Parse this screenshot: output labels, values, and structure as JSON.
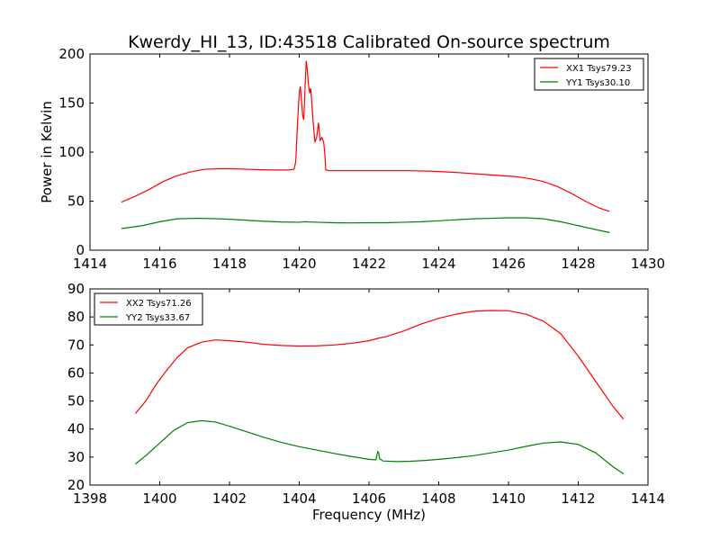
{
  "figure": {
    "title": "Kwerdy_HI_13, ID:43518 Calibrated On-source spectrum",
    "ylabel": "Power in Kelvin",
    "xlabel": "Frequency (MHz)"
  },
  "chart_data": [
    {
      "type": "line",
      "xlim": [
        1414,
        1430
      ],
      "ylim": [
        0,
        200
      ],
      "xticks": [
        1414,
        1416,
        1418,
        1420,
        1422,
        1424,
        1426,
        1428,
        1430
      ],
      "yticks": [
        0,
        50,
        100,
        150,
        200
      ],
      "legend_position": "top-right",
      "series": [
        {
          "name": "XX1 Tsys79.23",
          "color": "#ff0000",
          "points": [
            [
              1414.9,
              49
            ],
            [
              1415.3,
              55
            ],
            [
              1415.7,
              62
            ],
            [
              1416.1,
              70
            ],
            [
              1416.5,
              76
            ],
            [
              1416.9,
              80
            ],
            [
              1417.3,
              82.5
            ],
            [
              1417.7,
              83
            ],
            [
              1418.1,
              83
            ],
            [
              1418.5,
              82.5
            ],
            [
              1418.9,
              82
            ],
            [
              1419.3,
              81.8
            ],
            [
              1419.7,
              81.8
            ],
            [
              1419.85,
              82.5
            ],
            [
              1419.9,
              90
            ],
            [
              1419.95,
              130
            ],
            [
              1420.0,
              160
            ],
            [
              1420.03,
              167
            ],
            [
              1420.07,
              150
            ],
            [
              1420.1,
              137
            ],
            [
              1420.13,
              133
            ],
            [
              1420.16,
              160
            ],
            [
              1420.2,
              193
            ],
            [
              1420.23,
              185
            ],
            [
              1420.26,
              170
            ],
            [
              1420.3,
              160
            ],
            [
              1420.33,
              165
            ],
            [
              1420.36,
              150
            ],
            [
              1420.4,
              130
            ],
            [
              1420.45,
              110
            ],
            [
              1420.5,
              115
            ],
            [
              1420.55,
              130
            ],
            [
              1420.6,
              112
            ],
            [
              1420.65,
              115
            ],
            [
              1420.7,
              110
            ],
            [
              1420.73,
              100
            ],
            [
              1420.76,
              82
            ],
            [
              1420.85,
              81
            ],
            [
              1421.2,
              81
            ],
            [
              1421.8,
              81
            ],
            [
              1422.5,
              81
            ],
            [
              1423.2,
              81
            ],
            [
              1423.8,
              80.5
            ],
            [
              1424.4,
              79.5
            ],
            [
              1425.0,
              78
            ],
            [
              1425.6,
              76.5
            ],
            [
              1426.2,
              75
            ],
            [
              1426.6,
              73
            ],
            [
              1427.0,
              70
            ],
            [
              1427.4,
              65
            ],
            [
              1427.8,
              58
            ],
            [
              1428.2,
              50
            ],
            [
              1428.6,
              43
            ],
            [
              1428.9,
              39.5
            ]
          ]
        },
        {
          "name": "YY1 Tsys30.10",
          "color": "#008000",
          "points": [
            [
              1414.9,
              22
            ],
            [
              1415.5,
              25
            ],
            [
              1416.0,
              29
            ],
            [
              1416.5,
              32
            ],
            [
              1417.0,
              32.5
            ],
            [
              1417.5,
              32.2
            ],
            [
              1418.0,
              31.5
            ],
            [
              1418.5,
              30.5
            ],
            [
              1419.0,
              29.5
            ],
            [
              1419.5,
              28.8
            ],
            [
              1420.0,
              28.5
            ],
            [
              1420.15,
              29
            ],
            [
              1420.5,
              28.5
            ],
            [
              1421.0,
              28
            ],
            [
              1421.5,
              27.8
            ],
            [
              1422.0,
              28
            ],
            [
              1422.5,
              28
            ],
            [
              1423.0,
              28.5
            ],
            [
              1423.5,
              29
            ],
            [
              1424.0,
              30
            ],
            [
              1424.5,
              31
            ],
            [
              1425.0,
              32
            ],
            [
              1425.5,
              32.5
            ],
            [
              1426.0,
              33
            ],
            [
              1426.5,
              33
            ],
            [
              1427.0,
              32
            ],
            [
              1427.5,
              29
            ],
            [
              1428.0,
              25
            ],
            [
              1428.5,
              21
            ],
            [
              1428.9,
              18
            ]
          ]
        }
      ]
    },
    {
      "type": "line",
      "xlim": [
        1398,
        1414
      ],
      "ylim": [
        20,
        90
      ],
      "xticks": [
        1398,
        1400,
        1402,
        1404,
        1406,
        1408,
        1410,
        1412,
        1414
      ],
      "yticks": [
        20,
        30,
        40,
        50,
        60,
        70,
        80,
        90
      ],
      "legend_position": "top-left",
      "series": [
        {
          "name": "XX2 Tsys71.26",
          "color": "#ff0000",
          "points": [
            [
              1399.3,
              45.5
            ],
            [
              1399.6,
              50
            ],
            [
              1399.9,
              56
            ],
            [
              1400.2,
              61
            ],
            [
              1400.5,
              65.5
            ],
            [
              1400.8,
              69
            ],
            [
              1401.2,
              71
            ],
            [
              1401.6,
              71.8
            ],
            [
              1402.0,
              71.5
            ],
            [
              1402.5,
              71
            ],
            [
              1403.0,
              70.2
            ],
            [
              1403.5,
              69.8
            ],
            [
              1404.0,
              69.6
            ],
            [
              1404.5,
              69.7
            ],
            [
              1405.0,
              70
            ],
            [
              1405.5,
              70.6
            ],
            [
              1406.0,
              71.5
            ],
            [
              1406.3,
              72.5
            ],
            [
              1406.5,
              73
            ],
            [
              1407.0,
              75
            ],
            [
              1407.5,
              77.5
            ],
            [
              1408.0,
              79.5
            ],
            [
              1408.5,
              81
            ],
            [
              1409.0,
              82
            ],
            [
              1409.5,
              82.3
            ],
            [
              1410.0,
              82.2
            ],
            [
              1410.5,
              81
            ],
            [
              1411.0,
              78.5
            ],
            [
              1411.5,
              74
            ],
            [
              1412.0,
              66
            ],
            [
              1412.5,
              57
            ],
            [
              1413.0,
              48
            ],
            [
              1413.3,
              43.5
            ]
          ]
        },
        {
          "name": "YY2 Tsys33.67",
          "color": "#008000",
          "points": [
            [
              1399.3,
              27.5
            ],
            [
              1399.6,
              30.5
            ],
            [
              1400.0,
              35
            ],
            [
              1400.4,
              39.5
            ],
            [
              1400.8,
              42.3
            ],
            [
              1401.2,
              43
            ],
            [
              1401.6,
              42.5
            ],
            [
              1402.0,
              41
            ],
            [
              1402.5,
              39
            ],
            [
              1403.0,
              37
            ],
            [
              1403.5,
              35.2
            ],
            [
              1404.0,
              33.7
            ],
            [
              1404.5,
              32.5
            ],
            [
              1405.0,
              31.3
            ],
            [
              1405.5,
              30.2
            ],
            [
              1406.0,
              29.2
            ],
            [
              1406.2,
              29
            ],
            [
              1406.25,
              32
            ],
            [
              1406.28,
              31.5
            ],
            [
              1406.3,
              29.5
            ],
            [
              1406.4,
              28.6
            ],
            [
              1406.8,
              28.4
            ],
            [
              1407.2,
              28.5
            ],
            [
              1407.6,
              28.8
            ],
            [
              1408.0,
              29.2
            ],
            [
              1408.5,
              29.8
            ],
            [
              1409.0,
              30.5
            ],
            [
              1409.5,
              31.5
            ],
            [
              1410.0,
              32.5
            ],
            [
              1410.5,
              33.8
            ],
            [
              1411.0,
              35
            ],
            [
              1411.5,
              35.4
            ],
            [
              1412.0,
              34.5
            ],
            [
              1412.5,
              31.5
            ],
            [
              1413.0,
              26.5
            ],
            [
              1413.3,
              24
            ]
          ]
        }
      ]
    }
  ]
}
